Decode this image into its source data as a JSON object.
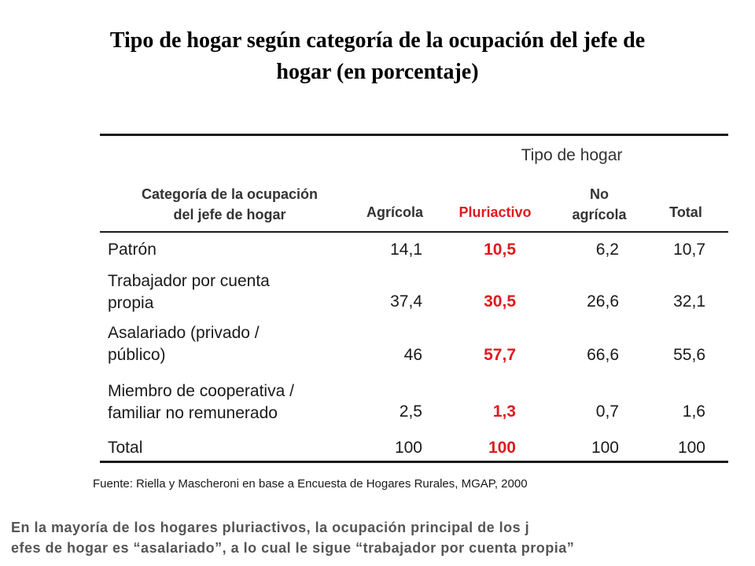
{
  "title": {
    "line1": "Tipo de hogar según categoría de la ocupación del jefe de",
    "line2": "hogar (en porcentaje)"
  },
  "table": {
    "group_header": "Tipo de hogar",
    "row_header": {
      "line1": "Categoría de la ocupación",
      "line2": "del jefe de hogar"
    },
    "columns": {
      "agricola": "Agrícola",
      "pluriactivo": "Pluriactivo",
      "no_agricola_line1": "No",
      "no_agricola_line2": "agrícola",
      "total": "Total"
    },
    "highlight_color": "#e0191e",
    "rows": [
      {
        "label1": "Patrón",
        "label2": "",
        "agricola": "14,1",
        "pluriactivo": "10,5",
        "no_agricola": "6,2",
        "total": "10,7"
      },
      {
        "label1": "Trabajador por cuenta",
        "label2": "propia",
        "agricola": "37,4",
        "pluriactivo": "30,5",
        "no_agricola": "26,6",
        "total": "32,1"
      },
      {
        "label1": "Asalariado (privado /",
        "label2": "público)",
        "agricola": "46",
        "pluriactivo": "57,7",
        "no_agricola": "66,6",
        "total": "55,6"
      },
      {
        "label1": "Miembro de cooperativa /",
        "label2": "familiar no remunerado",
        "agricola": "2,5",
        "pluriactivo": "1,3",
        "no_agricola": "0,7",
        "total": "1,6"
      },
      {
        "label1": "Total",
        "label2": "",
        "agricola": "100",
        "pluriactivo": "100",
        "no_agricola": "100",
        "total": "100"
      }
    ]
  },
  "source": "Fuente: Riella y Mascheroni  en base a Encuesta de Hogares Rurales, MGAP, 2000",
  "note": {
    "line1": "En la mayoría de los hogares pluriactivos, la ocupación principal de los j",
    "line2": "efes de hogar es “asalariado”, a lo cual le sigue “trabajador por cuenta propia”"
  }
}
